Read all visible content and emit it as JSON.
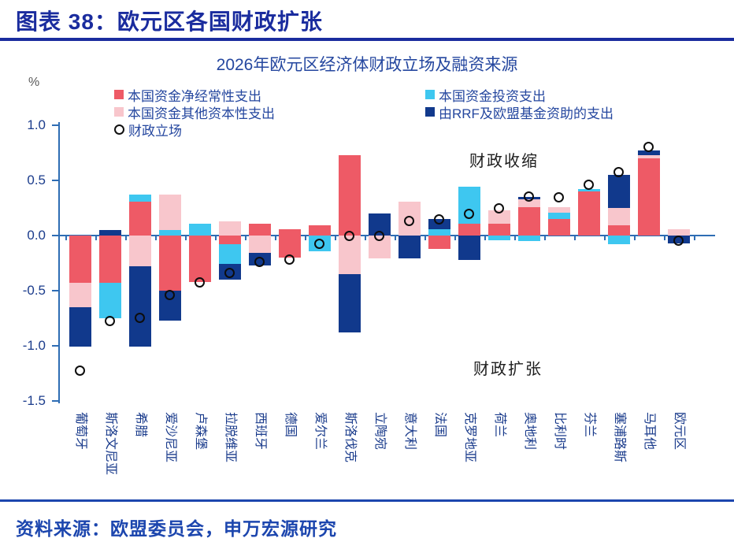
{
  "page": {
    "header_title": "图表 38：欧元区各国财政扩张",
    "source_note": "资料来源：欧盟委员会，申万宏源研究"
  },
  "chart_data": {
    "type": "bar",
    "stacked": true,
    "title": "2026年欧元区经济体财政立场及融资来源",
    "unit_label": "%",
    "ylim": [
      -1.5,
      1.0
    ],
    "yticks": [
      {
        "value": 1.0,
        "label": "1.0"
      },
      {
        "value": 0.5,
        "label": "0.5"
      },
      {
        "value": 0.0,
        "label": "0.0"
      },
      {
        "value": -0.5,
        "label": "-0.5"
      },
      {
        "value": -1.0,
        "label": "-1.0"
      },
      {
        "value": -1.5,
        "label": "-1.5"
      }
    ],
    "colors": {
      "red": "#ee5a66",
      "cyan": "#3ec7f0",
      "pink": "#f8c6cc",
      "darkblue": "#11398c"
    },
    "axis_color": "#2e6db4",
    "legend": [
      {
        "series": "red",
        "label": "本国资金净经常性支出",
        "col": 0,
        "marker": "square"
      },
      {
        "series": "pink",
        "label": "本国资金其他资本性支出",
        "col": 0,
        "marker": "square"
      },
      {
        "series": "stance",
        "label": "财政立场",
        "col": 0,
        "marker": "circle"
      },
      {
        "series": "cyan",
        "label": "本国资金投资支出",
        "col": 1,
        "marker": "square"
      },
      {
        "series": "darkblue",
        "label": "由RRF及欧盟基金资助的支出",
        "col": 1,
        "marker": "square"
      }
    ],
    "annotations": {
      "contraction": "财政收缩",
      "expansion": "财政扩张"
    },
    "categories": [
      "葡萄牙",
      "斯洛文尼亚",
      "希腊",
      "爱沙尼亚",
      "卢森堡",
      "拉脱维亚",
      "西班牙",
      "德国",
      "爱尔兰",
      "斯洛伐克",
      "立陶宛",
      "意大利",
      "法国",
      "克罗地亚",
      "荷兰",
      "奥地利",
      "比利时",
      "芬兰",
      "塞浦路斯",
      "马耳他",
      "欧元区"
    ],
    "bars": [
      {
        "label": "葡萄牙",
        "pos": [],
        "neg": [
          {
            "s": "red",
            "v": 0.43
          },
          {
            "s": "pink",
            "v": 0.22
          },
          {
            "s": "darkblue",
            "v": 0.36
          }
        ],
        "stance": -1.23
      },
      {
        "label": "斯洛文尼亚",
        "pos": [
          {
            "s": "darkblue",
            "v": 0.05
          }
        ],
        "neg": [
          {
            "s": "red",
            "v": 0.43
          },
          {
            "s": "cyan",
            "v": 0.32
          }
        ],
        "stance": -0.78
      },
      {
        "label": "希腊",
        "pos": [
          {
            "s": "red",
            "v": 0.31
          },
          {
            "s": "cyan",
            "v": 0.06
          }
        ],
        "neg": [
          {
            "s": "pink",
            "v": 0.28
          },
          {
            "s": "darkblue",
            "v": 0.73
          }
        ],
        "stance": -0.75
      },
      {
        "label": "爱沙尼亚",
        "pos": [
          {
            "s": "cyan",
            "v": 0.05
          },
          {
            "s": "pink",
            "v": 0.32
          }
        ],
        "neg": [
          {
            "s": "red",
            "v": 0.5
          },
          {
            "s": "darkblue",
            "v": 0.27
          }
        ],
        "stance": -0.54
      },
      {
        "label": "卢森堡",
        "pos": [
          {
            "s": "cyan",
            "v": 0.11
          }
        ],
        "neg": [
          {
            "s": "red",
            "v": 0.42
          }
        ],
        "stance": -0.43
      },
      {
        "label": "拉脱维亚",
        "pos": [
          {
            "s": "pink",
            "v": 0.13
          }
        ],
        "neg": [
          {
            "s": "red",
            "v": 0.08
          },
          {
            "s": "cyan",
            "v": 0.18
          },
          {
            "s": "darkblue",
            "v": 0.14
          }
        ],
        "stance": -0.34
      },
      {
        "label": "西班牙",
        "pos": [
          {
            "s": "red",
            "v": 0.11
          }
        ],
        "neg": [
          {
            "s": "pink",
            "v": 0.16
          },
          {
            "s": "darkblue",
            "v": 0.11
          }
        ],
        "stance": -0.24
      },
      {
        "label": "德国",
        "pos": [
          {
            "s": "red",
            "v": 0.06
          }
        ],
        "neg": [
          {
            "s": "red",
            "v": 0.2
          }
        ],
        "stance": -0.22
      },
      {
        "label": "爱尔兰",
        "pos": [
          {
            "s": "red",
            "v": 0.09
          }
        ],
        "neg": [
          {
            "s": "cyan",
            "v": 0.14
          }
        ],
        "stance": -0.08
      },
      {
        "label": "斯洛伐克",
        "pos": [
          {
            "s": "red",
            "v": 0.73
          }
        ],
        "neg": [
          {
            "s": "pink",
            "v": 0.35
          },
          {
            "s": "darkblue",
            "v": 0.53
          }
        ],
        "stance": -0.01
      },
      {
        "label": "立陶宛",
        "pos": [
          {
            "s": "darkblue",
            "v": 0.2
          }
        ],
        "neg": [
          {
            "s": "pink",
            "v": 0.21
          }
        ],
        "stance": -0.01
      },
      {
        "label": "意大利",
        "pos": [
          {
            "s": "pink",
            "v": 0.31
          }
        ],
        "neg": [
          {
            "s": "darkblue",
            "v": 0.21
          }
        ],
        "stance": 0.13
      },
      {
        "label": "法国",
        "pos": [
          {
            "s": "cyan",
            "v": 0.06
          },
          {
            "s": "darkblue",
            "v": 0.09
          }
        ],
        "neg": [
          {
            "s": "red",
            "v": 0.12
          }
        ],
        "stance": 0.14
      },
      {
        "label": "克罗地亚",
        "pos": [
          {
            "s": "red",
            "v": 0.11
          },
          {
            "s": "cyan",
            "v": 0.33
          }
        ],
        "neg": [
          {
            "s": "darkblue",
            "v": 0.22
          }
        ],
        "stance": 0.19
      },
      {
        "label": "荷兰",
        "pos": [
          {
            "s": "red",
            "v": 0.11
          },
          {
            "s": "pink",
            "v": 0.12
          }
        ],
        "neg": [
          {
            "s": "cyan",
            "v": 0.04
          }
        ],
        "stance": 0.24
      },
      {
        "label": "奥地利",
        "pos": [
          {
            "s": "red",
            "v": 0.26
          },
          {
            "s": "pink",
            "v": 0.07
          },
          {
            "s": "darkblue",
            "v": 0.02
          }
        ],
        "neg": [
          {
            "s": "cyan",
            "v": 0.05
          }
        ],
        "stance": 0.35
      },
      {
        "label": "比利时",
        "pos": [
          {
            "s": "red",
            "v": 0.15
          },
          {
            "s": "cyan",
            "v": 0.06
          },
          {
            "s": "pink",
            "v": 0.05
          }
        ],
        "neg": [],
        "stance": 0.34
      },
      {
        "label": "芬兰",
        "pos": [
          {
            "s": "red",
            "v": 0.4
          },
          {
            "s": "cyan",
            "v": 0.02
          }
        ],
        "neg": [],
        "stance": 0.46
      },
      {
        "label": "塞浦路斯",
        "pos": [
          {
            "s": "red",
            "v": 0.09
          },
          {
            "s": "pink",
            "v": 0.16
          },
          {
            "s": "darkblue",
            "v": 0.3
          }
        ],
        "neg": [
          {
            "s": "cyan",
            "v": 0.08
          }
        ],
        "stance": 0.57
      },
      {
        "label": "马耳他",
        "pos": [
          {
            "s": "red",
            "v": 0.7
          },
          {
            "s": "pink",
            "v": 0.03
          },
          {
            "s": "darkblue",
            "v": 0.04
          }
        ],
        "neg": [],
        "stance": 0.8
      },
      {
        "label": "欧元区",
        "pos": [
          {
            "s": "pink",
            "v": 0.06
          }
        ],
        "neg": [
          {
            "s": "darkblue",
            "v": 0.07
          }
        ],
        "stance": -0.05
      }
    ]
  }
}
